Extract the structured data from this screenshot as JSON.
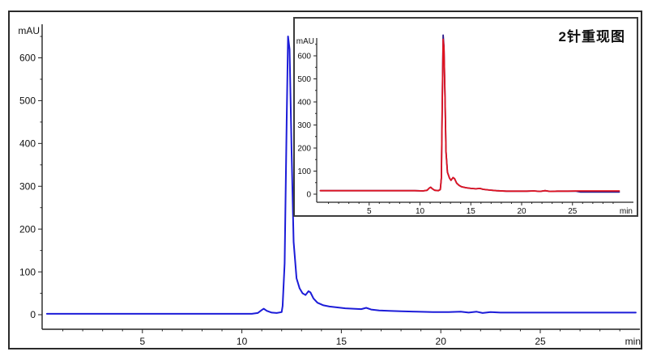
{
  "figure": {
    "background_color": "#ffffff",
    "border_color": "#2a2a2a",
    "axis_color": "#222222"
  },
  "chart_data": [
    {
      "type": "line",
      "name": "main-chromatogram",
      "title": "",
      "ylabel": "mAU",
      "xlabel": "min",
      "xlim": [
        0,
        30
      ],
      "ylim": [
        -30,
        700
      ],
      "grid": false,
      "yticks": [
        0,
        100,
        200,
        300,
        400,
        500,
        600
      ],
      "xticks": [
        5,
        10,
        15,
        20,
        25
      ],
      "legend": "none",
      "series": [
        {
          "name": "sample-injection-blue",
          "color": "#1c1cd8",
          "points": [
            [
              0.2,
              2
            ],
            [
              1,
              2
            ],
            [
              2,
              2
            ],
            [
              3,
              2
            ],
            [
              4,
              2
            ],
            [
              5,
              2
            ],
            [
              6,
              2
            ],
            [
              7,
              2
            ],
            [
              8,
              2
            ],
            [
              9,
              2
            ],
            [
              10,
              2
            ],
            [
              10.5,
              2
            ],
            [
              10.8,
              4
            ],
            [
              11.0,
              11
            ],
            [
              11.1,
              14
            ],
            [
              11.25,
              9
            ],
            [
              11.5,
              5
            ],
            [
              11.75,
              4
            ],
            [
              12.0,
              6
            ],
            [
              12.05,
              20
            ],
            [
              12.15,
              120
            ],
            [
              12.25,
              450
            ],
            [
              12.32,
              650
            ],
            [
              12.4,
              620
            ],
            [
              12.5,
              380
            ],
            [
              12.6,
              170
            ],
            [
              12.75,
              85
            ],
            [
              12.9,
              62
            ],
            [
              13.05,
              50
            ],
            [
              13.2,
              46
            ],
            [
              13.35,
              55
            ],
            [
              13.45,
              52
            ],
            [
              13.6,
              38
            ],
            [
              13.8,
              28
            ],
            [
              14.1,
              22
            ],
            [
              14.4,
              19
            ],
            [
              14.8,
              17
            ],
            [
              15.2,
              15
            ],
            [
              15.6,
              14
            ],
            [
              16.0,
              13
            ],
            [
              16.25,
              16
            ],
            [
              16.5,
              12
            ],
            [
              16.9,
              10
            ],
            [
              17.4,
              9
            ],
            [
              18.0,
              8
            ],
            [
              18.8,
              7
            ],
            [
              19.6,
              6
            ],
            [
              20.4,
              6
            ],
            [
              21.0,
              7
            ],
            [
              21.4,
              5
            ],
            [
              21.8,
              7
            ],
            [
              22.1,
              4
            ],
            [
              22.5,
              6
            ],
            [
              23.0,
              5
            ],
            [
              24,
              5
            ],
            [
              25,
              5
            ],
            [
              26,
              5
            ],
            [
              27,
              5
            ],
            [
              28,
              5
            ],
            [
              29,
              5
            ],
            [
              29.8,
              5
            ]
          ]
        }
      ]
    },
    {
      "type": "line",
      "name": "reproducibility-overlay-inset",
      "title": "2针重现图",
      "ylabel": "mAU",
      "xlabel": "min",
      "xlim": [
        0,
        30
      ],
      "ylim": [
        -30,
        700
      ],
      "grid": false,
      "yticks": [
        0,
        100,
        200,
        300,
        400,
        500,
        600
      ],
      "xticks": [
        5,
        10,
        15,
        20,
        25
      ],
      "legend": "none",
      "series": [
        {
          "name": "injection-2-navy",
          "color": "#2a1a8a",
          "points": [
            [
              0.2,
              15
            ],
            [
              2,
              15
            ],
            [
              4,
              15
            ],
            [
              6,
              15
            ],
            [
              8,
              15
            ],
            [
              9.5,
              15
            ],
            [
              10.3,
              14
            ],
            [
              10.7,
              17
            ],
            [
              10.9,
              26
            ],
            [
              11.05,
              30
            ],
            [
              11.2,
              24
            ],
            [
              11.45,
              17
            ],
            [
              11.8,
              15
            ],
            [
              12.0,
              20
            ],
            [
              12.1,
              70
            ],
            [
              12.2,
              430
            ],
            [
              12.28,
              690
            ],
            [
              12.36,
              640
            ],
            [
              12.46,
              420
            ],
            [
              12.56,
              185
            ],
            [
              12.7,
              95
            ],
            [
              12.9,
              70
            ],
            [
              13.05,
              60
            ],
            [
              13.25,
              72
            ],
            [
              13.4,
              67
            ],
            [
              13.6,
              48
            ],
            [
              13.85,
              38
            ],
            [
              14.1,
              32
            ],
            [
              14.5,
              28
            ],
            [
              15,
              25
            ],
            [
              15.5,
              23
            ],
            [
              15.9,
              25
            ],
            [
              16.2,
              21
            ],
            [
              16.8,
              18
            ],
            [
              17.5,
              15
            ],
            [
              18.5,
              13
            ],
            [
              19.5,
              13
            ],
            [
              20.5,
              13
            ],
            [
              21.2,
              14
            ],
            [
              21.8,
              12
            ],
            [
              22.3,
              15
            ],
            [
              22.8,
              12
            ],
            [
              23.5,
              13
            ],
            [
              24.5,
              13
            ],
            [
              25.3,
              13
            ],
            [
              25.8,
              9
            ],
            [
              26.5,
              9
            ],
            [
              27.5,
              9
            ],
            [
              28.5,
              9
            ],
            [
              29.6,
              9
            ]
          ]
        },
        {
          "name": "injection-1-red",
          "color": "#e01420",
          "points": [
            [
              0.2,
              15
            ],
            [
              2,
              15
            ],
            [
              4,
              15
            ],
            [
              6,
              15
            ],
            [
              8,
              15
            ],
            [
              9.5,
              15
            ],
            [
              10.3,
              14
            ],
            [
              10.7,
              17
            ],
            [
              10.9,
              26
            ],
            [
              11.05,
              30
            ],
            [
              11.2,
              24
            ],
            [
              11.45,
              17
            ],
            [
              11.8,
              15
            ],
            [
              12.0,
              20
            ],
            [
              12.1,
              70
            ],
            [
              12.2,
              420
            ],
            [
              12.28,
              672
            ],
            [
              12.36,
              635
            ],
            [
              12.46,
              420
            ],
            [
              12.56,
              185
            ],
            [
              12.7,
              95
            ],
            [
              12.9,
              70
            ],
            [
              13.05,
              60
            ],
            [
              13.25,
              72
            ],
            [
              13.4,
              67
            ],
            [
              13.6,
              48
            ],
            [
              13.85,
              38
            ],
            [
              14.1,
              32
            ],
            [
              14.5,
              28
            ],
            [
              15,
              25
            ],
            [
              15.5,
              23
            ],
            [
              15.9,
              25
            ],
            [
              16.2,
              21
            ],
            [
              16.8,
              18
            ],
            [
              17.5,
              15
            ],
            [
              18.5,
              13
            ],
            [
              19.5,
              13
            ],
            [
              20.5,
              13
            ],
            [
              21.2,
              14
            ],
            [
              21.8,
              12
            ],
            [
              22.3,
              15
            ],
            [
              22.8,
              12
            ],
            [
              23.5,
              13
            ],
            [
              24.5,
              13
            ],
            [
              25.5,
              14
            ],
            [
              26.5,
              14
            ],
            [
              27.5,
              14
            ],
            [
              28.5,
              14
            ],
            [
              29.6,
              14
            ]
          ]
        }
      ]
    }
  ]
}
